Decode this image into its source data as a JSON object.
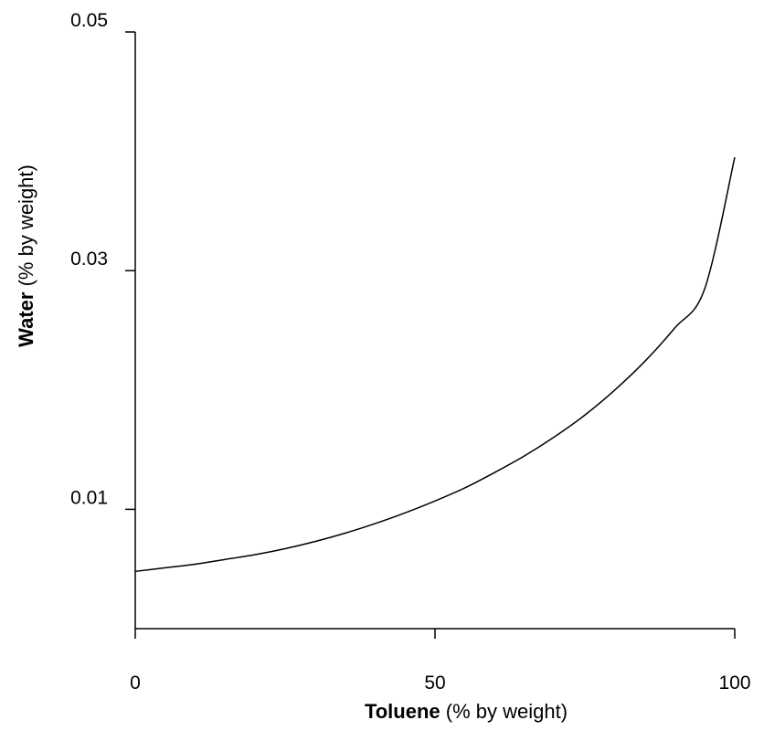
{
  "chart_data": {
    "type": "line",
    "xlabel": {
      "bold": "Toluene",
      "rest": " (% by weight)"
    },
    "ylabel": {
      "bold": "Water",
      "rest": " (% by weight)"
    },
    "xlim": [
      0,
      100
    ],
    "ylim": [
      0,
      0.05
    ],
    "xticks": [
      {
        "value": 0,
        "label": "0"
      },
      {
        "value": 50,
        "label": "50"
      },
      {
        "value": 100,
        "label": "100"
      }
    ],
    "yticks": [
      {
        "value": 0.01,
        "label": "0.01"
      },
      {
        "value": 0.03,
        "label": "0.03"
      },
      {
        "value": 0.05,
        "label": "0.05"
      }
    ],
    "grid": false,
    "series": [
      {
        "color": "#000000",
        "x": [
          0,
          5,
          10,
          15,
          20,
          25,
          30,
          35,
          40,
          45,
          50,
          55,
          60,
          65,
          70,
          75,
          80,
          85,
          90,
          95,
          100
        ],
        "y": [
          0.0048,
          0.0051,
          0.0054,
          0.0058,
          0.0062,
          0.0067,
          0.0073,
          0.008,
          0.0088,
          0.0097,
          0.0107,
          0.0118,
          0.0131,
          0.0145,
          0.0161,
          0.0179,
          0.02,
          0.0224,
          0.0252,
          0.0285,
          0.0395
        ]
      }
    ]
  }
}
